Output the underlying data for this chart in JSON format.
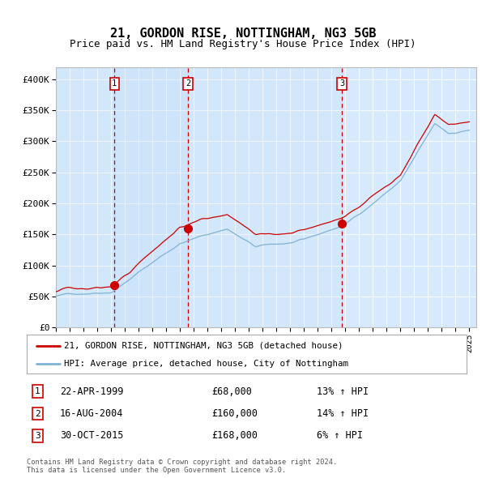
{
  "title": "21, GORDON RISE, NOTTINGHAM, NG3 5GB",
  "subtitle": "Price paid vs. HM Land Registry's House Price Index (HPI)",
  "ylim": [
    0,
    420000
  ],
  "yticks": [
    0,
    50000,
    100000,
    150000,
    200000,
    250000,
    300000,
    350000,
    400000
  ],
  "ytick_labels": [
    "£0",
    "£50K",
    "£100K",
    "£150K",
    "£200K",
    "£250K",
    "£300K",
    "£350K",
    "£400K"
  ],
  "x_start_year": 1995,
  "x_end_year": 2025,
  "xtick_years": [
    1995,
    1996,
    1997,
    1998,
    1999,
    2000,
    2001,
    2002,
    2003,
    2004,
    2005,
    2006,
    2007,
    2008,
    2009,
    2010,
    2011,
    2012,
    2013,
    2014,
    2015,
    2016,
    2017,
    2018,
    2019,
    2020,
    2021,
    2022,
    2023,
    2024,
    2025
  ],
  "sale_prices": [
    68000,
    160000,
    168000
  ],
  "sale_labels": [
    "1",
    "2",
    "3"
  ],
  "sale_date_strs": [
    "22-APR-1999",
    "16-AUG-2004",
    "30-OCT-2015"
  ],
  "sale_price_strs": [
    "£68,000",
    "£160,000",
    "£168,000"
  ],
  "sale_hpi_strs": [
    "13% ↑ HPI",
    "14% ↑ HPI",
    "6% ↑ HPI"
  ],
  "red_color": "#cc0000",
  "blue_color": "#7fb3d3",
  "bg_color": "#ddeeff",
  "grid_color": "#ffffff",
  "legend_line1": "21, GORDON RISE, NOTTINGHAM, NG3 5GB (detached house)",
  "legend_line2": "HPI: Average price, detached house, City of Nottingham",
  "footer": "Contains HM Land Registry data © Crown copyright and database right 2024.\nThis data is licensed under the Open Government Licence v3.0.",
  "title_fontsize": 11,
  "subtitle_fontsize": 9
}
